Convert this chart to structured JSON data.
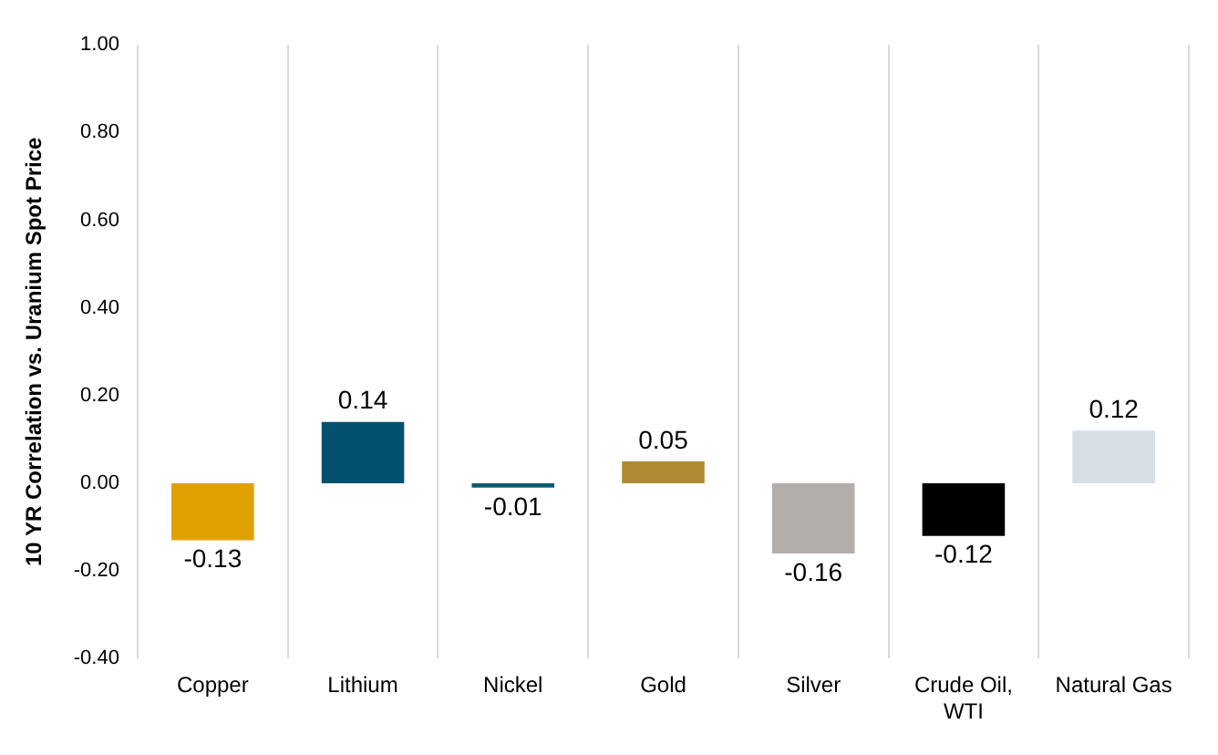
{
  "chart_data": {
    "type": "bar",
    "ylabel": "10 YR Correlation vs. Uranium Spot Price",
    "categories": [
      "Copper",
      "Lithium",
      "Nickel",
      "Gold",
      "Silver",
      "Crude Oil, WTI",
      "Natural Gas"
    ],
    "values": [
      -0.13,
      0.14,
      -0.01,
      0.05,
      -0.16,
      -0.12,
      0.12
    ],
    "colors": [
      "#e0a100",
      "#00506e",
      "#0f5a73",
      "#b08a32",
      "#b3adab",
      "#000000",
      "#d6dee6"
    ],
    "ylim": [
      -0.4,
      1.0
    ],
    "yticks": [
      {
        "value": -0.4,
        "label": "-0.40"
      },
      {
        "value": -0.2,
        "label": "-0.20"
      },
      {
        "value": 0,
        "label": "0.00"
      },
      {
        "value": 0.2,
        "label": "0.20"
      },
      {
        "value": 0.4,
        "label": "0.40"
      },
      {
        "value": 0.6,
        "label": "0.60"
      },
      {
        "value": 0.8,
        "label": "0.80"
      },
      {
        "value": 1.0,
        "label": "1.00"
      }
    ],
    "grid": "x",
    "data_labels": true,
    "legend": false
  }
}
